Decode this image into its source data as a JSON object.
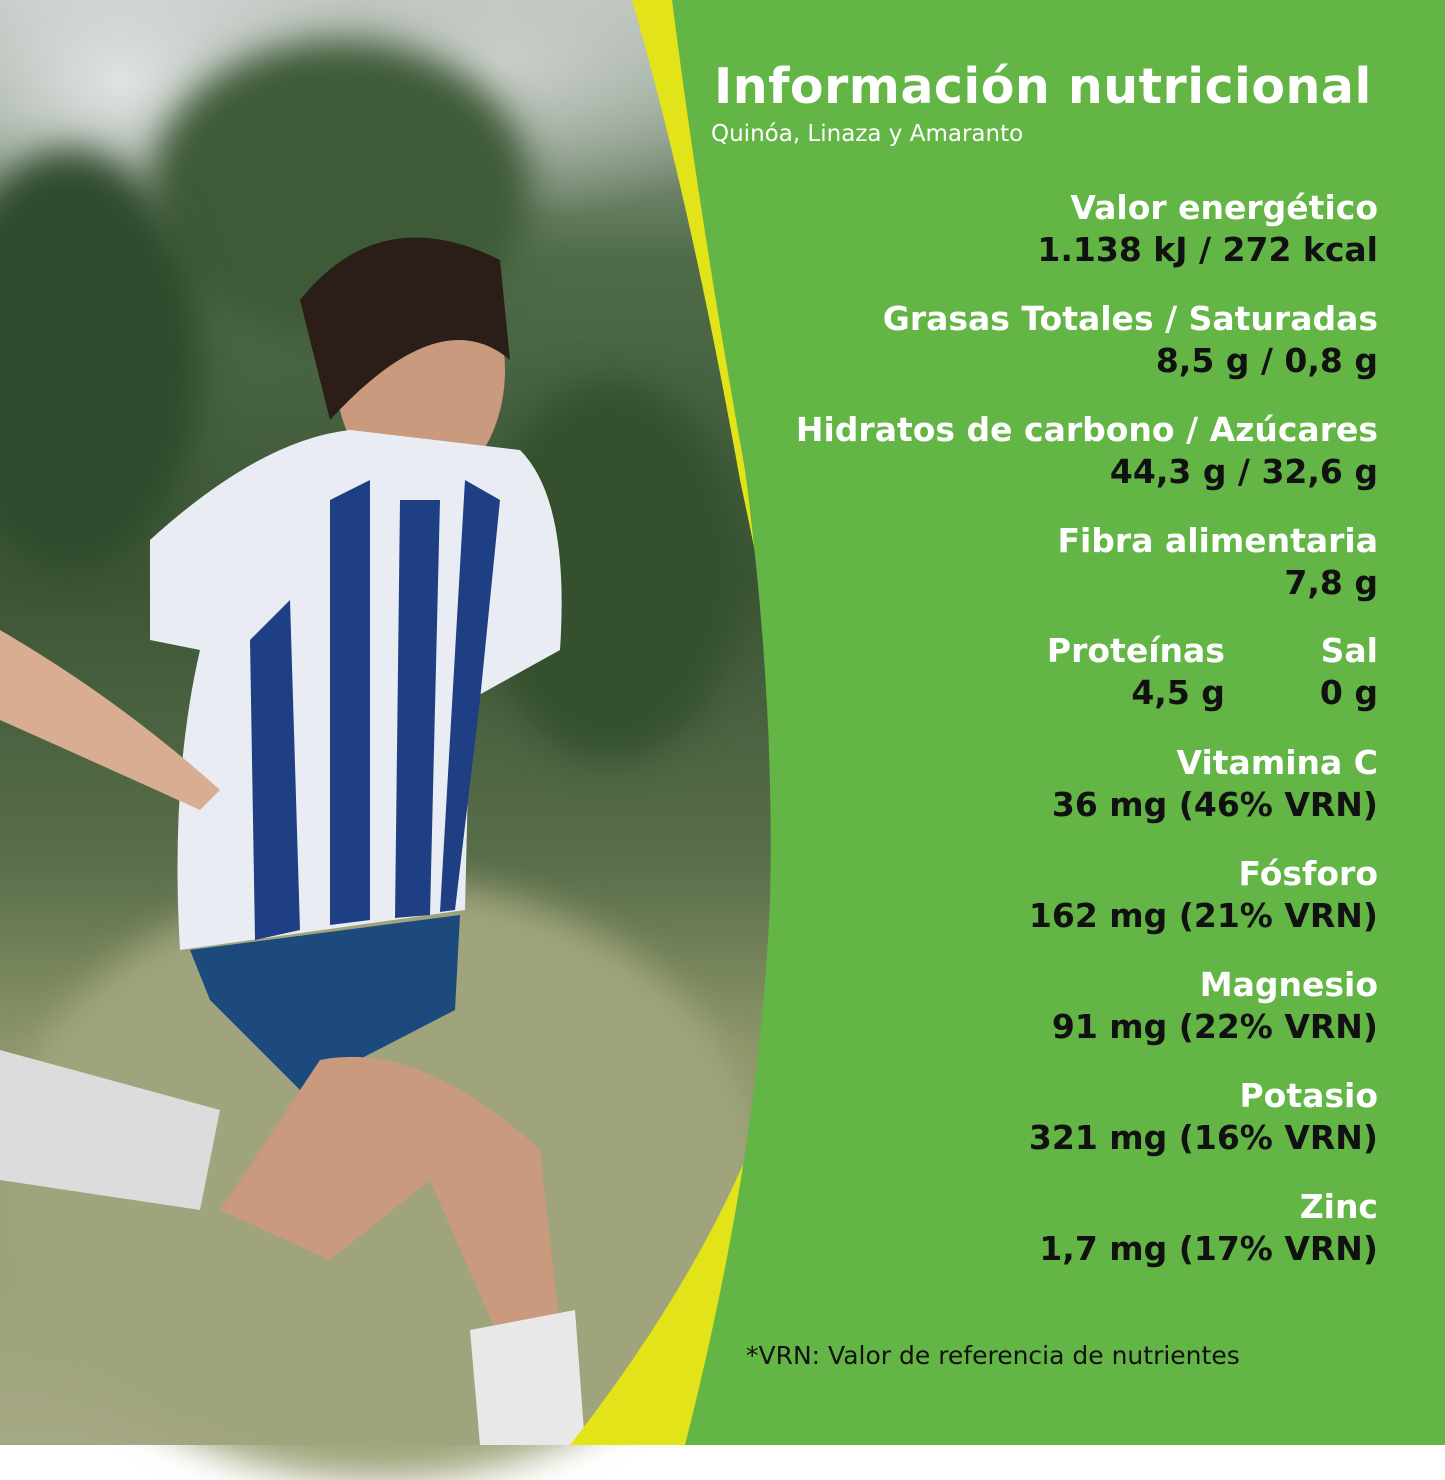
{
  "colors": {
    "panel_green": "#63b545",
    "accent_yellow": "#e3e31a",
    "label_text": "#ffffff",
    "value_text": "#111111"
  },
  "photo": {
    "description_icon": "photo-soccer-player"
  },
  "header": {
    "title": "Información nutricional",
    "subtitle": "Quinóa, Linaza y Amaranto"
  },
  "nutrients": [
    {
      "label": "Valor energético",
      "value": "1.138 kJ / 272 kcal"
    },
    {
      "label": "Grasas Totales / Saturadas",
      "value": "8,5 g / 0,8 g"
    },
    {
      "label": "Hidratos de carbono / Azúcares",
      "value": "44,3 g / 32,6 g"
    },
    {
      "label": "Fibra alimentaria",
      "value": "7,8 g"
    },
    {
      "label": "Vitamina C",
      "value": "36 mg (46% VRN)"
    },
    {
      "label": "Fósforo",
      "value": "162 mg (21% VRN)"
    },
    {
      "label": "Magnesio",
      "value": "91 mg (22% VRN)"
    },
    {
      "label": "Potasio",
      "value": "321 mg (16% VRN)"
    },
    {
      "label": "Zinc",
      "value": "1,7 mg (17% VRN)"
    }
  ],
  "pair": [
    {
      "label": "Proteínas",
      "value": "4,5 g"
    },
    {
      "label": "Sal",
      "value": "0 g"
    }
  ],
  "footnote": "*VRN: Valor de referencia de nutrientes"
}
